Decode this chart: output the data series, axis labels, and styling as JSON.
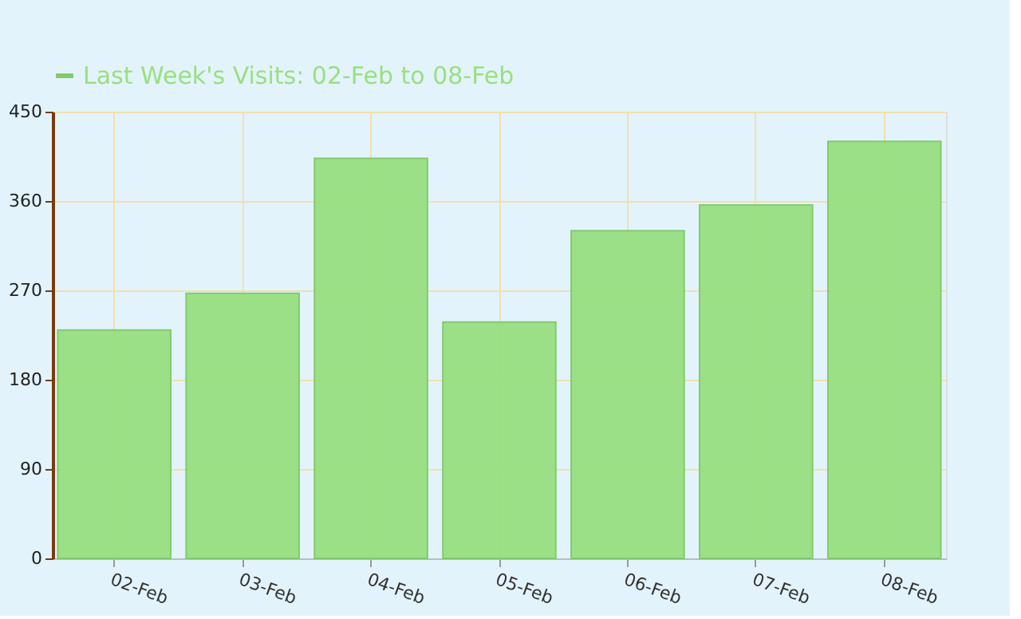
{
  "chart_data": {
    "type": "bar",
    "categories": [
      "02-Feb",
      "03-Feb",
      "04-Feb",
      "05-Feb",
      "06-Feb",
      "07-Feb",
      "08-Feb"
    ],
    "series": [
      {
        "name": "Last Week's Visits: 02-Feb to 08-Feb",
        "color": "#98e080",
        "values": [
          230,
          267,
          403,
          238,
          330,
          356,
          420
        ]
      }
    ],
    "ylim": [
      0,
      450
    ],
    "yticks": [
      0,
      90,
      180,
      270,
      360,
      450
    ],
    "grid": true,
    "legend": "top left"
  }
}
